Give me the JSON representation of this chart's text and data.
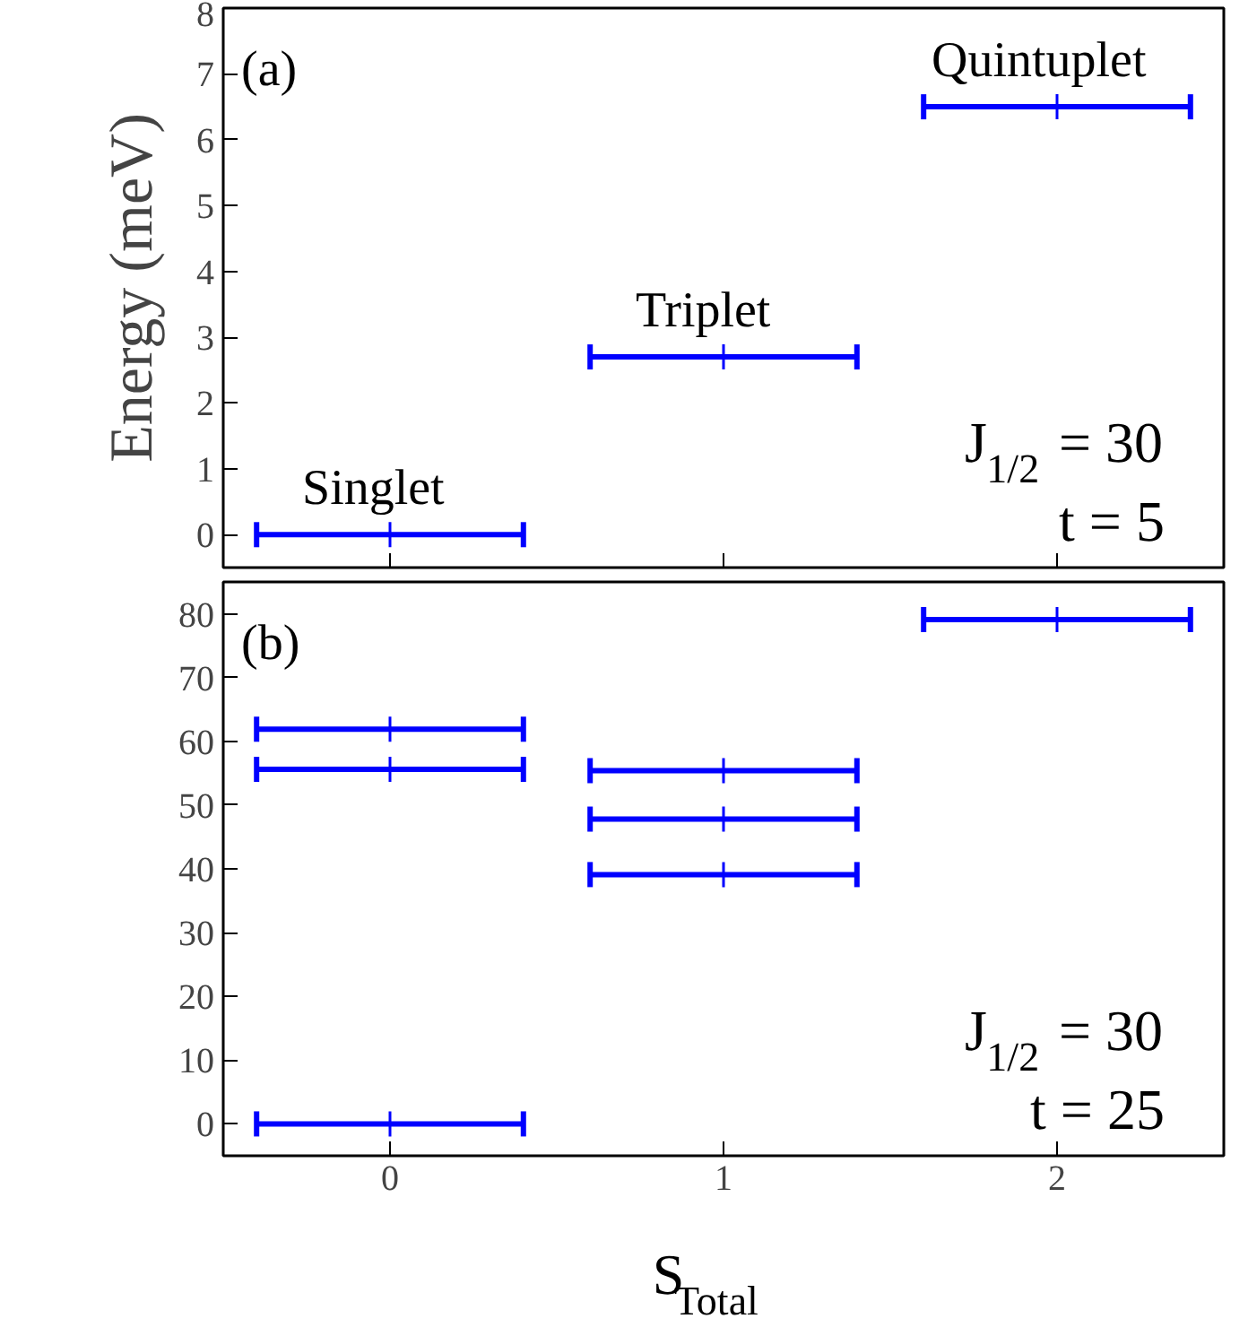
{
  "chart_data": [
    {
      "type": "scatter",
      "x": [
        0,
        1,
        2
      ],
      "values": [
        0,
        2.7,
        6.5
      ],
      "xerrors": [
        0.4,
        0.4,
        0.4
      ],
      "color": "#0000ff",
      "marker": "cross",
      "xlim": [
        -0.5,
        2.5
      ],
      "xticks": [
        0,
        1,
        2
      ],
      "ylim": [
        -0.5,
        8
      ],
      "yticks": [
        0,
        1,
        2,
        3,
        4,
        5,
        6,
        7,
        8
      ],
      "tick_labels": "y",
      "ylabel": "Energy (meV)",
      "annotations": [
        "(a)",
        "J$_{1/2}$ = 30",
        "t = 5",
        {
          "text": "Singlet",
          "x": 0,
          "y": 0
        },
        {
          "text": "Triplet",
          "x": 1,
          "y": 2.7
        },
        {
          "text": "Quintuplet",
          "x": 2,
          "y": 6.5
        }
      ]
    },
    {
      "type": "scatter",
      "x": [
        0,
        0,
        0,
        1,
        1,
        1,
        2
      ],
      "values": [
        0,
        55.6,
        61.9,
        39.1,
        47.8,
        55.4,
        79.1
      ],
      "xerrors": [
        0.4,
        0.4,
        0.4,
        0.4,
        0.4,
        0.4,
        0.4
      ],
      "color": "#0000ff",
      "marker": "cross",
      "xlim": [
        -0.5,
        2.5
      ],
      "xticks": [
        0,
        1,
        2
      ],
      "ylim": [
        -5,
        85
      ],
      "yticks": [
        0,
        10,
        20,
        30,
        40,
        50,
        60,
        70,
        80
      ],
      "xlabel": "S$_{Total}$",
      "annotations": [
        "(b)",
        "J$_{1/2}$ = 30",
        "t = 25"
      ]
    }
  ]
}
